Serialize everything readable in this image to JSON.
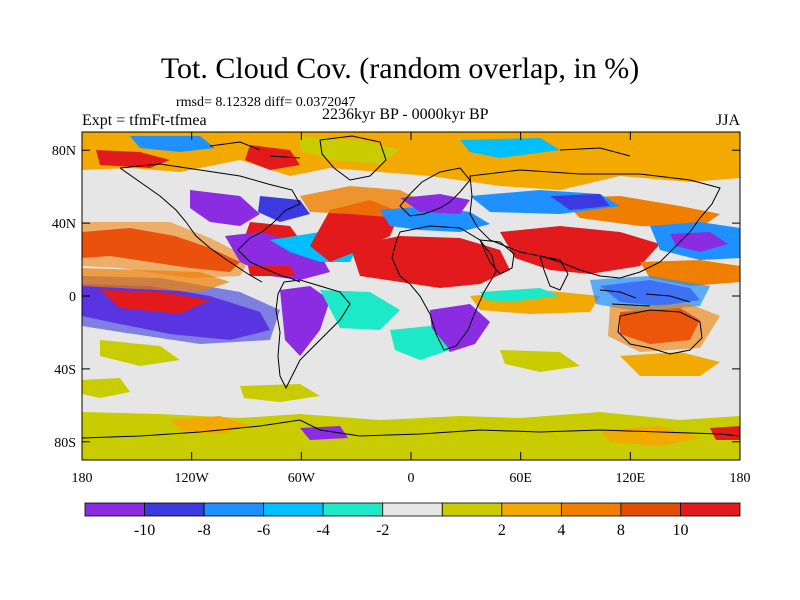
{
  "title": "Tot. Cloud Cov. (random overlap, in %)",
  "stats_line": "rmsd= 8.12328 diff= 0.0372047",
  "experiment_label": "Expt = tfmFt-tfmea",
  "period_label": "2236kyr BP - 0000kyr BP",
  "season_label": "JJA",
  "map": {
    "projection": "cylindrical-equidistant",
    "lon_range": [
      -180,
      180
    ],
    "lat_range": [
      -90,
      90
    ],
    "x_ticks": [
      {
        "value": -180,
        "label": "180"
      },
      {
        "value": -120,
        "label": "120W"
      },
      {
        "value": -60,
        "label": "60W"
      },
      {
        "value": 0,
        "label": "0"
      },
      {
        "value": 60,
        "label": "60E"
      },
      {
        "value": 120,
        "label": "120E"
      },
      {
        "value": 180,
        "label": "180"
      }
    ],
    "y_ticks": [
      {
        "value": 80,
        "label": "80N"
      },
      {
        "value": 40,
        "label": "40N"
      },
      {
        "value": 0,
        "label": "0"
      },
      {
        "value": -40,
        "label": "40S"
      },
      {
        "value": -80,
        "label": "80S"
      }
    ],
    "background_color": "#e6e6e6",
    "coastline_color": "#000000"
  },
  "colorbar": {
    "colors": [
      "#8b2be2",
      "#3a3ae0",
      "#1e90ff",
      "#00bfff",
      "#1de9c8",
      "#e6e6e6",
      "#c8cc00",
      "#f2a900",
      "#f07f00",
      "#e34d00",
      "#e31a1c"
    ],
    "labels": [
      "-10",
      "-8",
      "-6",
      "-4",
      "-2",
      "2",
      "4",
      "8",
      "10"
    ]
  }
}
